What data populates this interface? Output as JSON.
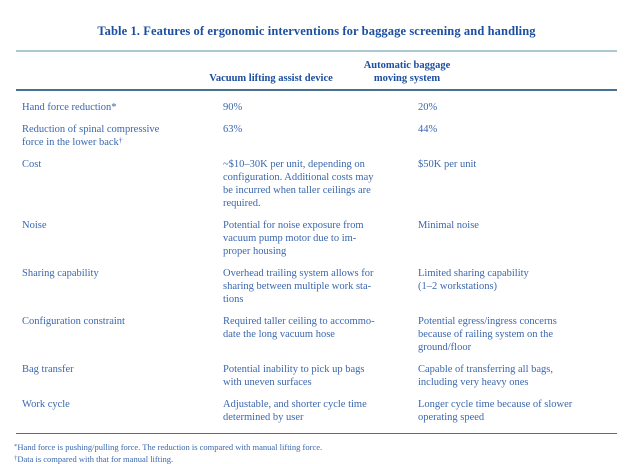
{
  "table": {
    "title": "Table 1. Features of ergonomic interventions for baggage screening and handling",
    "header": {
      "feature_col": "",
      "vacuum_col": "Vacuum lifting assist device",
      "automatic_col": "Automatic baggage\nmoving system"
    },
    "rows": [
      {
        "feature": "Hand force reduction*",
        "marker": "",
        "vacuum": "90%",
        "automatic": "20%"
      },
      {
        "feature": "Reduction of spinal compressive\nforce in the lower back",
        "marker": "†",
        "vacuum": "63%",
        "automatic": "44%"
      },
      {
        "feature": "Cost",
        "marker": "",
        "vacuum": "~$10–30K per unit, depending on\nconfiguration. Additional costs may\nbe incurred when taller ceilings are\nrequired.",
        "automatic": "$50K per unit"
      },
      {
        "feature": "Noise",
        "marker": "",
        "vacuum": "Potential for noise exposure from\nvacuum pump motor due to im-\nproper housing",
        "automatic": "Minimal noise"
      },
      {
        "feature": "Sharing capability",
        "marker": "",
        "vacuum": "Overhead trailing system allows for\nsharing between multiple work sta-\ntions",
        "automatic": "Limited sharing capability\n(1–2 workstations)"
      },
      {
        "feature": "Configuration constraint",
        "marker": "",
        "vacuum": "Required taller ceiling to accommo-\ndate the long vacuum hose",
        "automatic": "Potential egress/ingress concerns\nbecause of railing system on the\nground/floor"
      },
      {
        "feature": "Bag transfer",
        "marker": "",
        "vacuum": "Potential inability to pick up bags\nwith uneven surfaces",
        "automatic": "Capable of transferring all bags,\nincluding very heavy ones"
      },
      {
        "feature": "Work cycle",
        "marker": "",
        "vacuum": "Adjustable, and shorter cycle time\ndetermined by user",
        "automatic": "Longer cycle time because of slower\noperating speed"
      }
    ],
    "footnotes": [
      {
        "marker": "*",
        "text": "Hand force is pushing/pulling force. The reduction is compared with manual lifting force."
      },
      {
        "marker": "†",
        "text": "Data is compared with that for manual lifting."
      }
    ],
    "colors": {
      "title_text": "#1d4fa1",
      "body_text": "#3a67ae",
      "rule_light": "#abc8d3",
      "rule_dark": "#47718f"
    }
  }
}
